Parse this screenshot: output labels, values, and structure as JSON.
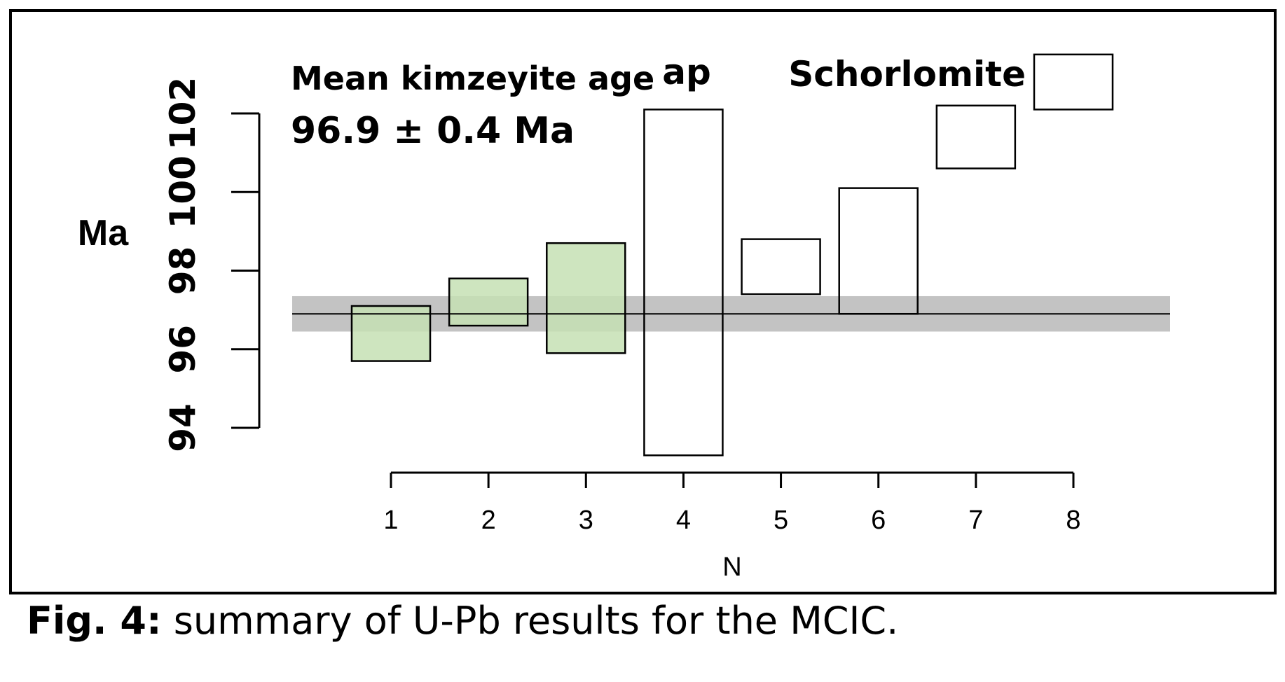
{
  "colors": {
    "kimzeyite_fill": "#c5e0b4",
    "band_fill": "#c3c3c3",
    "frame": "#000000"
  },
  "chart_data": {
    "type": "bar",
    "chart_style": "box (error bars)",
    "ylabel": "Ma",
    "xlabel": "N",
    "ylim": [
      93.2,
      104.8
    ],
    "y_ticks": [
      "94",
      "96",
      "98",
      "100",
      "102"
    ],
    "x_ticks": [
      "1",
      "2",
      "3",
      "4",
      "5",
      "6",
      "7",
      "8"
    ],
    "mean_line": 96.9,
    "mean_band": [
      96.45,
      97.35
    ],
    "annotations": {
      "mean_title": "Mean kimzeyite age",
      "mean_value": "96.9 ± 0.4 Ma",
      "ap": "ap",
      "schorlomite": "Schorlomite"
    },
    "series": [
      {
        "name": "kimzeyite",
        "points": [
          {
            "n": 1,
            "low": 95.7,
            "high": 97.1
          },
          {
            "n": 2,
            "low": 96.6,
            "high": 97.8
          },
          {
            "n": 3,
            "low": 95.9,
            "high": 98.7
          }
        ]
      },
      {
        "name": "ap",
        "points": [
          {
            "n": 4,
            "low": 93.3,
            "high": 102.1
          }
        ]
      },
      {
        "name": "Schorlomite",
        "points": [
          {
            "n": 5,
            "low": 97.4,
            "high": 98.8
          },
          {
            "n": 6,
            "low": 96.9,
            "high": 100.1
          },
          {
            "n": 7,
            "low": 100.6,
            "high": 102.2
          },
          {
            "n": 8,
            "low": 102.1,
            "high": 103.5
          }
        ]
      }
    ]
  },
  "caption": {
    "label": "Fig. 4:",
    "text": " summary of U-Pb results for the MCIC."
  }
}
